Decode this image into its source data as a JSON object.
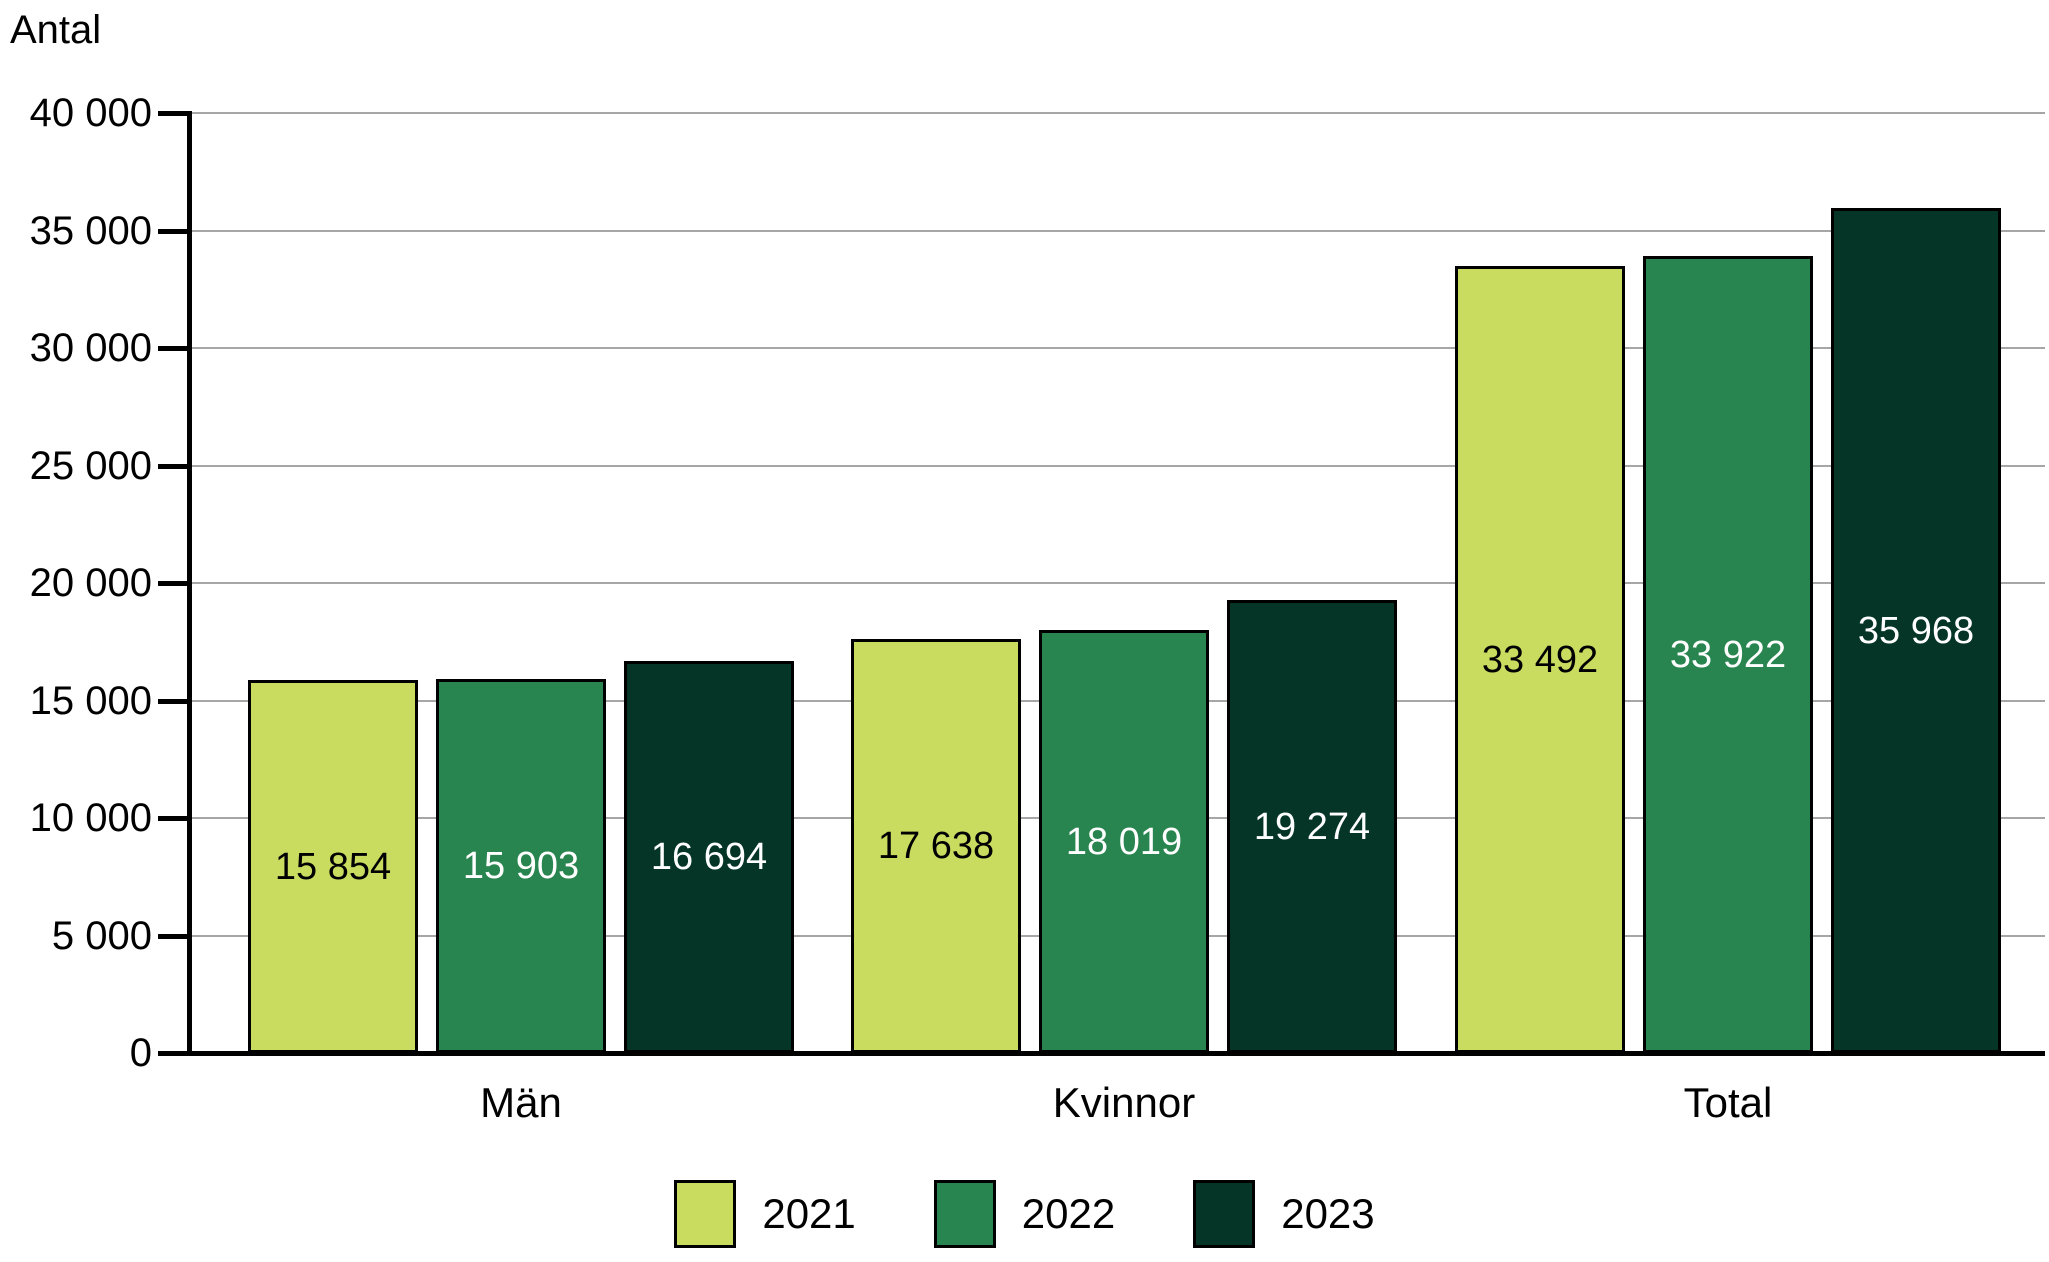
{
  "chart_data": {
    "type": "bar",
    "title": "",
    "ylabel": "Antal",
    "xlabel": "",
    "categories": [
      "Män",
      "Kvinnor",
      "Total"
    ],
    "series": [
      {
        "name": "2021",
        "color": "#C9DC60",
        "border_color": "#000000",
        "label_color": "#000000",
        "values": [
          15854,
          17638,
          33492
        ],
        "value_labels": [
          "15 854",
          "17 638",
          "33 492"
        ]
      },
      {
        "name": "2022",
        "color": "#28854F",
        "border_color": "#000000",
        "label_color": "#FFFFFF",
        "values": [
          15903,
          18019,
          33922
        ],
        "value_labels": [
          "15 903",
          "18 019",
          "33 922"
        ]
      },
      {
        "name": "2023",
        "color": "#043527",
        "border_color": "#000000",
        "label_color": "#FFFFFF",
        "values": [
          16694,
          19274,
          35968
        ],
        "value_labels": [
          "16 694",
          "19 274",
          "35 968"
        ]
      }
    ],
    "ylim": [
      0,
      40000
    ],
    "yticks": [
      {
        "value": 0,
        "label": "0"
      },
      {
        "value": 5000,
        "label": "5 000"
      },
      {
        "value": 10000,
        "label": "10 000"
      },
      {
        "value": 15000,
        "label": "15 000"
      },
      {
        "value": 20000,
        "label": "20 000"
      },
      {
        "value": 25000,
        "label": "25 000"
      },
      {
        "value": 30000,
        "label": "30 000"
      },
      {
        "value": 35000,
        "label": "35 000"
      },
      {
        "value": 40000,
        "label": "40 000"
      }
    ],
    "grid": true,
    "legend_position": "bottom",
    "legend": [
      "2021",
      "2022",
      "2023"
    ],
    "colors": {
      "grid": "#A6A6A6",
      "axis": "#000000",
      "text": "#000000",
      "background": "#FFFFFF"
    }
  }
}
